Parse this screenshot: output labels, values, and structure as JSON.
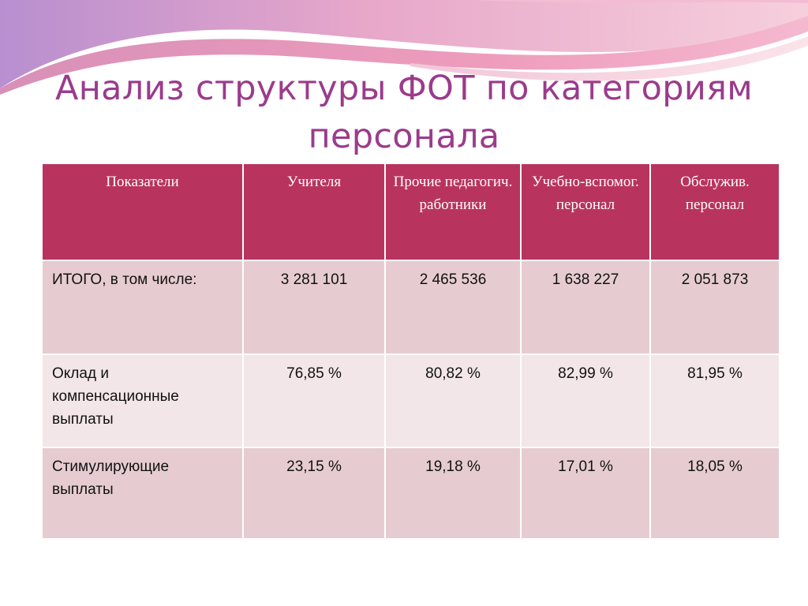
{
  "slide": {
    "title": "Анализ структуры ФОТ по категориям персонала"
  },
  "table": {
    "headers": [
      "Показатели",
      "Учителя",
      "Прочие педагогич. работники",
      "Учебно-вспомог. персонал",
      "Обслужив. персонал"
    ],
    "rows": [
      {
        "label": "ИТОГО, в том числе:",
        "values": [
          "3 281 101",
          "2 465 536",
          "1 638 227",
          "2 051 873"
        ]
      },
      {
        "label": "Оклад и компенсационные выплаты",
        "values": [
          "76,85 %",
          "80,82 %",
          "82,99 %",
          "81,95 %"
        ]
      },
      {
        "label": "Стимулирующие выплаты",
        "values": [
          "23,15 %",
          "19,18 %",
          "17,01 %",
          "18,05 %"
        ]
      }
    ]
  },
  "colors": {
    "title": "#9b3b8c",
    "header_bg": "#b8345f",
    "row_dark": "#e6ccd1",
    "row_light": "#f2e6e8"
  }
}
